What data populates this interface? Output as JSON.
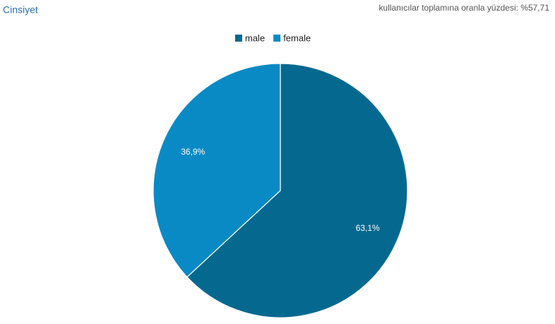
{
  "chart_data": {
    "type": "pie",
    "title": "Cinsiyet",
    "subtitle": "kullanıcılar toplamına oranla yüzdesi: %57,71",
    "categories": [
      "male",
      "female"
    ],
    "values": [
      63.1,
      36.9
    ],
    "value_labels": [
      "63,1%",
      "36,9%"
    ],
    "colors": [
      "#05698f",
      "#0a8ac4"
    ],
    "legend": "top"
  }
}
